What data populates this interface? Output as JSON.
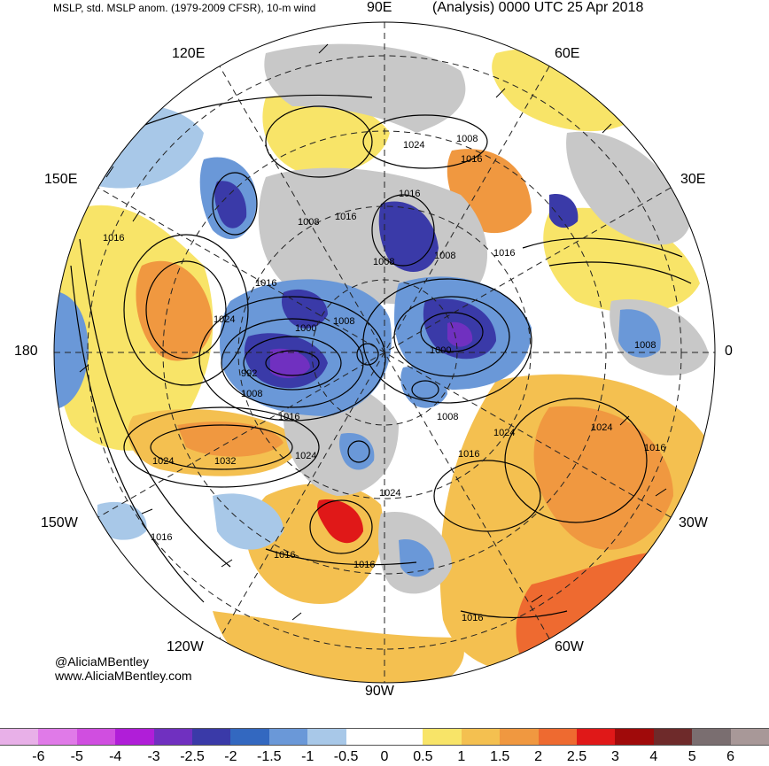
{
  "header": {
    "left_title": "MSLP, std. MSLP anom. (1979-2009 CFSR), 10-m wind",
    "right_title": "(Analysis) 0000 UTC 25 Apr 2018"
  },
  "credits": {
    "twitter": "@AliciaMBentley",
    "website": "www.AliciaMBentley.com"
  },
  "longitude_labels": [
    "90E",
    "60E",
    "30E",
    "0",
    "30W",
    "60W",
    "90W",
    "120W",
    "150W",
    "180",
    "150E",
    "120E"
  ],
  "isobar_labels": [
    "1024",
    "1008",
    "1016",
    "1016",
    "1008",
    "1016",
    "1008",
    "1008",
    "1016",
    "1016",
    "1024",
    "1016",
    "1000",
    "1008",
    "992",
    "1008",
    "1000",
    "1016",
    "1008",
    "1024",
    "1032",
    "1024",
    "1016",
    "1024",
    "1024",
    "1016",
    "1016",
    "1016",
    "1016",
    "1016",
    "1008",
    "1024"
  ],
  "colorbar": {
    "ticks": [
      "-6",
      "-5",
      "-4",
      "-3",
      "-2.5",
      "-2",
      "-1.5",
      "-1",
      "-0.5",
      "0",
      "0.5",
      "1",
      "1.5",
      "2",
      "2.5",
      "3",
      "4",
      "5",
      "6"
    ],
    "colors": [
      "#e8b0e8",
      "#e07ae8",
      "#d04ee0",
      "#b01ed8",
      "#7030c0",
      "#3a3aa8",
      "#3368c0",
      "#6a98d8",
      "#a8c8e8",
      "#ffffff",
      "#ffffff",
      "#f8e468",
      "#f4c050",
      "#f09840",
      "#ee6a30",
      "#e01818",
      "#a00a0a",
      "#6e2a2a",
      "#7a6e70",
      "#a89898"
    ]
  },
  "anomaly_regions": [
    {
      "kind": "positive-weak",
      "color": "#f8e468"
    },
    {
      "kind": "positive-moderate",
      "color": "#f4c050"
    },
    {
      "kind": "positive-strong",
      "color": "#f09840"
    },
    {
      "kind": "negative-weak",
      "color": "#a8c8e8"
    },
    {
      "kind": "negative-moderate",
      "color": "#6a98d8"
    },
    {
      "kind": "negative-strong",
      "color": "#3a3aa8"
    },
    {
      "kind": "terrain-mask",
      "color": "#c8c8c8"
    }
  ]
}
